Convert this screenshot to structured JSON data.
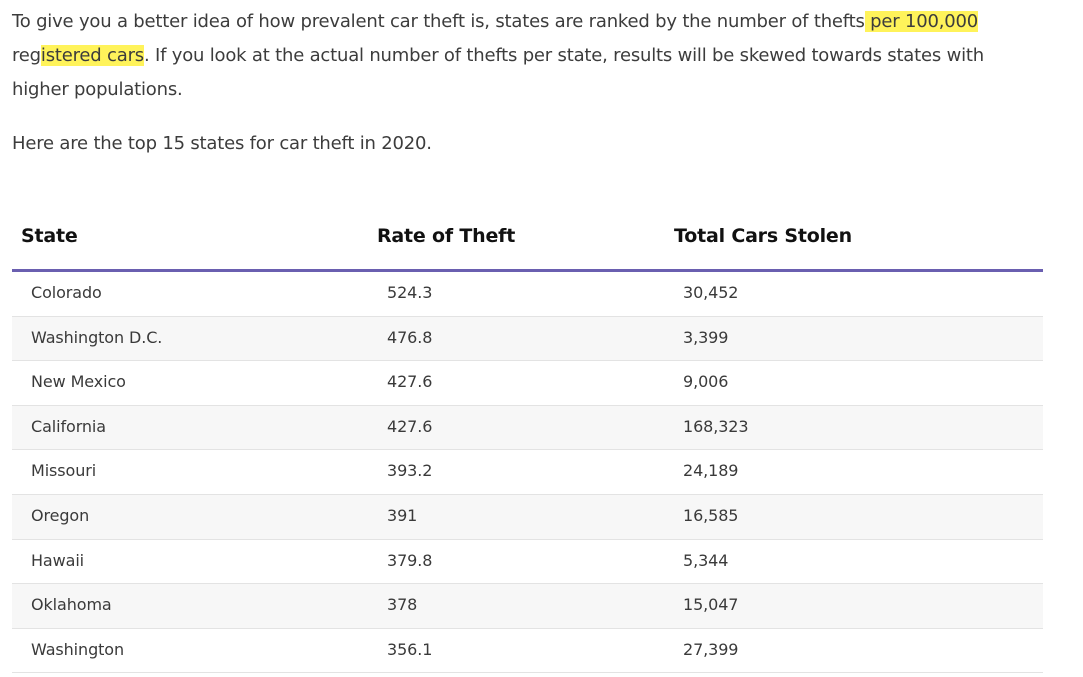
{
  "intro": {
    "line1_a": "To give you a better idea of how prevalent car theft is, states are ranked by the number of thefts",
    "line1_hl": " per 100,000",
    "line2_a": "reg",
    "line2_hl": "istered cars",
    "line2_b": ". If you look at the actual number of thefts per state, results will be skewed towards states with",
    "line3": "higher populations."
  },
  "subtitle": "Here are the top 15 states for car theft in 2020.",
  "table": {
    "headers": [
      "State",
      "Rate of Theft",
      "Total Cars Stolen"
    ],
    "rows": [
      [
        "Colorado",
        "524.3",
        "30,452"
      ],
      [
        "Washington D.C.",
        "476.8",
        "3,399"
      ],
      [
        "New Mexico",
        "427.6",
        "9,006"
      ],
      [
        "California",
        "427.6",
        "168,323"
      ],
      [
        "Missouri",
        "393.2",
        "24,189"
      ],
      [
        "Oregon",
        "391",
        "16,585"
      ],
      [
        "Hawaii",
        "379.8",
        "5,344"
      ],
      [
        "Oklahoma",
        "378",
        "15,047"
      ],
      [
        "Washington",
        "356.1",
        "27,399"
      ]
    ]
  },
  "colors": {
    "highlight": "#fff35a",
    "header_rule": "#6a5fb0",
    "alt_row": "#f7f7f7"
  }
}
